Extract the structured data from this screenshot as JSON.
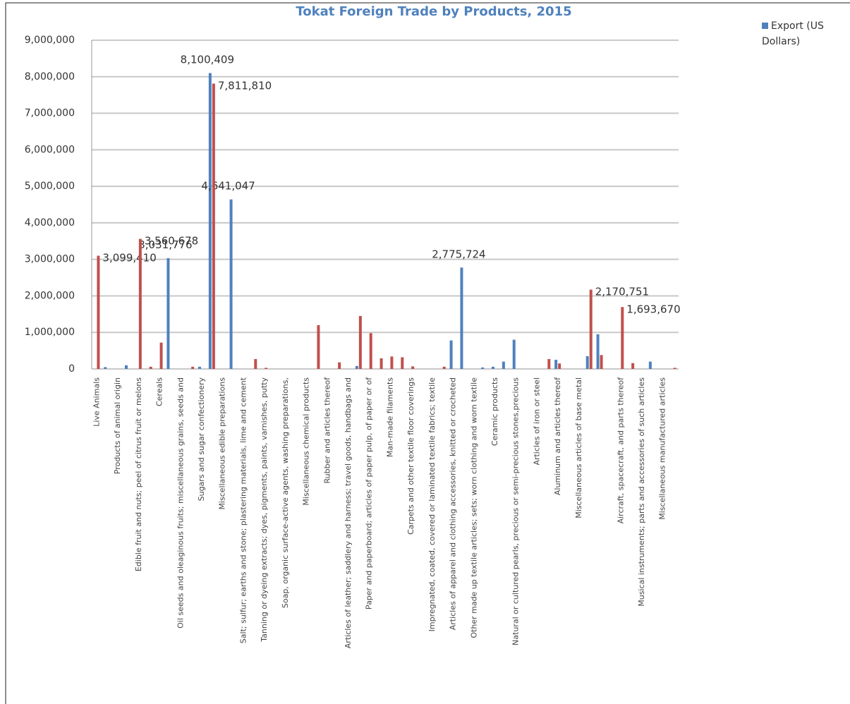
{
  "chart_data": {
    "type": "bar",
    "title": "Tokat Foreign Trade by Products, 2015",
    "categories": [
      "Live Animals",
      null,
      "Products of animal origin",
      null,
      "Edible fruit and nuts; peel of citrus fruit or melons",
      null,
      "Cereals",
      null,
      "Oil seeds and oleaginous fruits; miscellaneous grains, seeds and",
      null,
      "Sugars and sugar confectionery",
      null,
      "Miscellaneous edible preparations",
      null,
      "Salt; sulfur; earths and stone; plastering materials, lime and cement",
      null,
      "Tanning or dyeing extracts; dyes, pigments, paints, varnishes, putty",
      null,
      "Soap, organic surface-active agents, washing preparations,",
      null,
      "Miscellaneous chemical products",
      null,
      "Rubber and articles thereof",
      null,
      "Articles of leather; saddlery and harness; travel goods, handbags and",
      null,
      "Paper and paperboard; articles of paper pulp, of paper or of",
      null,
      "Man-made filaments",
      null,
      "Carpets and other textile floor coverings",
      null,
      "Impregnated, coated, covered or laminated textile fabrics; textile",
      null,
      "Articles of apparel and clothing accessories, knitted or crocheted",
      null,
      "Other made up textile articles; sets; worn clothing and worn textile",
      null,
      "Ceramic products",
      null,
      "Natural or cultured pearls, precious or semi-precious stones,precious",
      null,
      "Articles of iron or steel",
      null,
      "Aluminum and articles thereof",
      null,
      "Miscellaneous articles of base metal",
      null,
      null,
      null,
      "Aircraft, spacecraft, and parts thereof",
      null,
      "Musical instruments; parts and accessories of such articles",
      null,
      "Miscellaneous manufactured articles",
      null
    ],
    "series": [
      {
        "name": "Export  (US Dollars)",
        "color": "#4f81bd",
        "values": [
          0,
          50000,
          0,
          100000,
          0,
          0,
          0,
          3031776,
          0,
          0,
          60000,
          8100409,
          0,
          4641047,
          0,
          0,
          0,
          0,
          0,
          0,
          0,
          0,
          0,
          0,
          0,
          80000,
          0,
          0,
          0,
          0,
          0,
          0,
          0,
          0,
          780000,
          2775724,
          0,
          40000,
          60000,
          200000,
          800000,
          0,
          0,
          0,
          250000,
          0,
          0,
          350000,
          950000,
          0,
          0,
          0,
          0,
          200000,
          0,
          0
        ],
        "value_labels": [
          null,
          null,
          null,
          null,
          null,
          null,
          null,
          "3,031,776",
          null,
          null,
          null,
          "8,100,409",
          null,
          "4,641,047",
          null,
          null,
          null,
          null,
          null,
          null,
          null,
          null,
          null,
          null,
          null,
          null,
          null,
          null,
          null,
          null,
          null,
          null,
          null,
          null,
          null,
          "2,775,724",
          null,
          null,
          null,
          null,
          null,
          null,
          null,
          null,
          null,
          null,
          null,
          null,
          null,
          null,
          null,
          null,
          null,
          null,
          null,
          null
        ]
      },
      {
        "color": "#c0504d",
        "values": [
          3099410,
          0,
          0,
          0,
          3560678,
          60000,
          720000,
          0,
          0,
          60000,
          0,
          7811810,
          0,
          0,
          0,
          270000,
          30000,
          0,
          0,
          0,
          0,
          1200000,
          0,
          180000,
          0,
          1450000,
          980000,
          290000,
          340000,
          320000,
          70000,
          0,
          0,
          60000,
          0,
          0,
          0,
          0,
          0,
          0,
          0,
          0,
          0,
          270000,
          150000,
          0,
          0,
          2170751,
          380000,
          0,
          1693670,
          160000,
          0,
          0,
          0,
          30000
        ],
        "value_labels": [
          "3,099,410",
          null,
          null,
          null,
          "3,560,678",
          null,
          null,
          null,
          null,
          null,
          null,
          "7,811,810",
          null,
          null,
          null,
          null,
          null,
          null,
          null,
          null,
          null,
          null,
          null,
          null,
          null,
          null,
          null,
          null,
          null,
          null,
          null,
          null,
          null,
          null,
          null,
          null,
          null,
          null,
          null,
          null,
          null,
          null,
          null,
          null,
          null,
          null,
          null,
          "2,170,751",
          null,
          null,
          "1,693,670",
          null,
          null,
          null,
          null,
          null
        ]
      }
    ],
    "ylim": [
      0,
      9000000
    ],
    "yticks": [
      0,
      {
        "value": 1000000,
        "label": "1,000,000"
      },
      {
        "value": 2000000,
        "label": "2,000,000"
      },
      {
        "value": 3000000,
        "label": "3,000,000"
      },
      {
        "value": 4000000,
        "label": "4,000,000"
      },
      {
        "value": 5000000,
        "label": "5,000,000"
      },
      {
        "value": 6000000,
        "label": "6,000,000"
      },
      {
        "value": 7000000,
        "label": "7,000,000"
      },
      {
        "value": 8000000,
        "label": "8,000,000"
      },
      {
        "value": 9000000,
        "label": "9,000,000"
      }
    ],
    "grid": true,
    "legend": "right"
  }
}
